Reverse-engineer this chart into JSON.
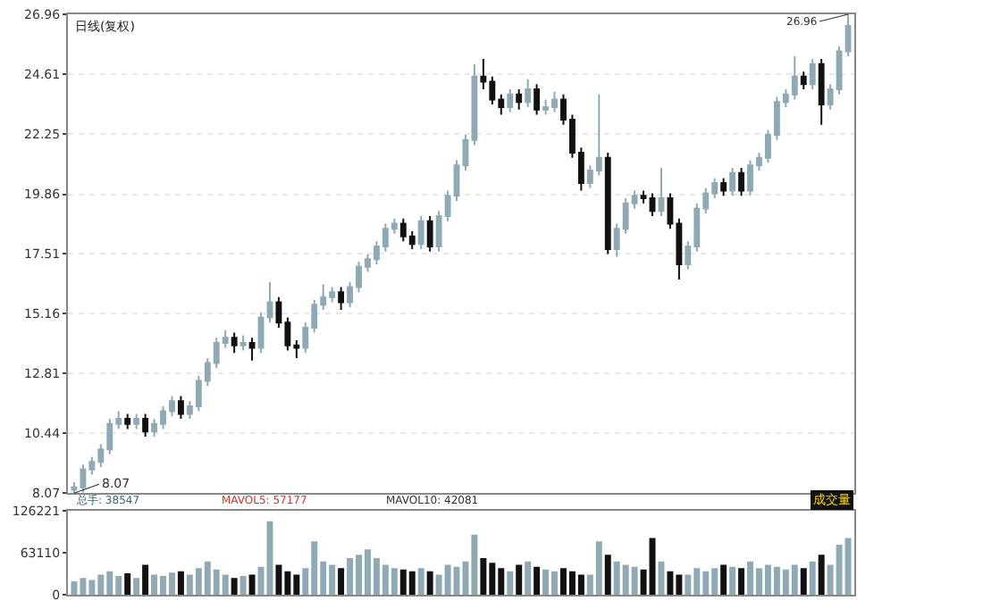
{
  "chart_data": [
    {
      "type": "candlestick",
      "title": "日线(复权)",
      "categories": [
        null,
        null,
        null,
        null,
        null,
        null,
        null,
        null,
        null,
        null,
        null,
        null,
        null,
        null,
        null,
        null,
        null,
        null,
        null,
        null,
        null,
        null,
        null,
        null,
        null,
        null,
        null,
        null,
        null,
        null,
        null,
        null,
        null,
        null,
        null,
        null,
        null,
        null,
        null,
        null,
        null,
        null,
        null,
        null,
        null,
        null,
        null,
        null,
        null,
        null,
        null,
        null,
        null,
        null,
        null,
        null,
        null,
        null,
        null,
        null,
        null,
        null,
        null,
        null,
        null,
        null,
        null,
        null,
        null,
        null,
        null,
        null,
        null,
        null,
        null,
        null,
        null,
        null,
        null,
        null,
        null,
        null,
        null,
        null,
        null,
        null,
        null,
        null
      ],
      "ohlc": [
        [
          8.2,
          8.5,
          8.07,
          8.3
        ],
        [
          8.3,
          9.2,
          8.1,
          9.0
        ],
        [
          9.0,
          9.5,
          8.8,
          9.3
        ],
        [
          9.3,
          10.0,
          9.1,
          9.8
        ],
        [
          9.8,
          11.0,
          9.6,
          10.8
        ],
        [
          10.8,
          11.3,
          10.6,
          11.0
        ],
        [
          11.0,
          11.2,
          10.6,
          10.8
        ],
        [
          10.8,
          11.2,
          10.6,
          11.0
        ],
        [
          11.0,
          11.2,
          10.3,
          10.5
        ],
        [
          10.5,
          11.0,
          10.3,
          10.8
        ],
        [
          10.8,
          11.5,
          10.6,
          11.3
        ],
        [
          11.3,
          11.9,
          11.1,
          11.7
        ],
        [
          11.7,
          11.9,
          11.0,
          11.2
        ],
        [
          11.2,
          11.7,
          11.0,
          11.5
        ],
        [
          11.5,
          12.7,
          11.3,
          12.5
        ],
        [
          12.5,
          13.4,
          12.3,
          13.2
        ],
        [
          13.2,
          14.2,
          13.0,
          14.0
        ],
        [
          14.0,
          14.5,
          13.8,
          14.2
        ],
        [
          14.2,
          14.4,
          13.6,
          13.9
        ],
        [
          13.9,
          14.3,
          13.7,
          14.0
        ],
        [
          14.0,
          14.2,
          13.3,
          13.8
        ],
        [
          13.8,
          15.2,
          13.6,
          15.0
        ],
        [
          15.0,
          16.4,
          14.8,
          15.6
        ],
        [
          15.6,
          15.8,
          14.6,
          14.8
        ],
        [
          14.8,
          15.0,
          13.7,
          13.9
        ],
        [
          13.9,
          14.1,
          13.4,
          13.8
        ],
        [
          13.8,
          14.8,
          13.6,
          14.6
        ],
        [
          14.6,
          15.7,
          14.4,
          15.5
        ],
        [
          15.5,
          16.3,
          15.3,
          15.8
        ],
        [
          15.8,
          16.2,
          15.6,
          16.0
        ],
        [
          16.0,
          16.2,
          15.3,
          15.6
        ],
        [
          15.6,
          16.4,
          15.4,
          16.2
        ],
        [
          16.2,
          17.2,
          16.0,
          17.0
        ],
        [
          17.0,
          17.5,
          16.8,
          17.3
        ],
        [
          17.3,
          18.0,
          17.1,
          17.8
        ],
        [
          17.8,
          18.7,
          17.6,
          18.5
        ],
        [
          18.5,
          18.9,
          18.3,
          18.7
        ],
        [
          18.7,
          18.9,
          18.0,
          18.2
        ],
        [
          18.2,
          18.4,
          17.7,
          17.9
        ],
        [
          17.9,
          19.0,
          17.7,
          18.8
        ],
        [
          18.8,
          19.0,
          17.6,
          17.8
        ],
        [
          17.8,
          19.2,
          17.6,
          19.0
        ],
        [
          19.0,
          20.0,
          18.8,
          19.8
        ],
        [
          19.8,
          21.2,
          19.6,
          21.0
        ],
        [
          21.0,
          22.2,
          20.8,
          22.0
        ],
        [
          22.0,
          25.0,
          21.8,
          24.5
        ],
        [
          24.5,
          25.2,
          24.0,
          24.3
        ],
        [
          24.3,
          24.5,
          23.4,
          23.6
        ],
        [
          23.6,
          23.8,
          23.0,
          23.3
        ],
        [
          23.3,
          24.0,
          23.1,
          23.8
        ],
        [
          23.8,
          24.0,
          23.2,
          23.5
        ],
        [
          23.5,
          24.4,
          23.3,
          24.0
        ],
        [
          24.0,
          24.2,
          23.0,
          23.2
        ],
        [
          23.2,
          23.6,
          23.0,
          23.3
        ],
        [
          23.3,
          23.9,
          23.1,
          23.6
        ],
        [
          23.6,
          23.8,
          22.6,
          22.8
        ],
        [
          22.8,
          23.0,
          21.3,
          21.5
        ],
        [
          21.5,
          21.7,
          20.0,
          20.3
        ],
        [
          20.3,
          21.0,
          20.1,
          20.8
        ],
        [
          20.8,
          23.8,
          20.6,
          21.3
        ],
        [
          21.3,
          21.5,
          17.5,
          17.7
        ],
        [
          17.7,
          18.7,
          17.4,
          18.5
        ],
        [
          18.5,
          19.7,
          18.3,
          19.5
        ],
        [
          19.5,
          20.0,
          19.3,
          19.8
        ],
        [
          19.8,
          20.0,
          19.5,
          19.7
        ],
        [
          19.7,
          19.9,
          19.0,
          19.2
        ],
        [
          19.2,
          20.9,
          19.0,
          19.7
        ],
        [
          19.7,
          19.9,
          18.5,
          18.7
        ],
        [
          18.7,
          18.9,
          16.5,
          17.1
        ],
        [
          17.1,
          18.0,
          16.9,
          17.8
        ],
        [
          17.8,
          19.5,
          17.6,
          19.3
        ],
        [
          19.3,
          20.1,
          19.1,
          19.9
        ],
        [
          19.9,
          20.5,
          19.7,
          20.3
        ],
        [
          20.3,
          20.5,
          19.8,
          20.0
        ],
        [
          20.0,
          20.9,
          19.8,
          20.7
        ],
        [
          20.7,
          20.9,
          19.8,
          20.0
        ],
        [
          20.0,
          21.2,
          19.8,
          21.0
        ],
        [
          21.0,
          21.5,
          20.8,
          21.3
        ],
        [
          21.3,
          22.4,
          21.1,
          22.2
        ],
        [
          22.2,
          23.7,
          22.0,
          23.5
        ],
        [
          23.5,
          24.0,
          23.3,
          23.8
        ],
        [
          23.8,
          25.3,
          23.6,
          24.5
        ],
        [
          24.5,
          24.7,
          24.0,
          24.2
        ],
        [
          24.2,
          25.2,
          24.0,
          25.0
        ],
        [
          25.0,
          25.2,
          22.6,
          23.4
        ],
        [
          23.4,
          24.2,
          23.2,
          24.0
        ],
        [
          24.0,
          25.7,
          23.8,
          25.5
        ],
        [
          25.5,
          26.96,
          25.3,
          26.5
        ]
      ],
      "colors": [
        "#8fa9b5",
        "#8fa9b5",
        "#8fa9b5",
        "#8fa9b5",
        "#8fa9b5",
        "#8fa9b5",
        "#111111",
        "#8fa9b5",
        "#111111",
        "#8fa9b5",
        "#8fa9b5",
        "#8fa9b5",
        "#111111",
        "#8fa9b5",
        "#8fa9b5",
        "#8fa9b5",
        "#8fa9b5",
        "#8fa9b5",
        "#111111",
        "#8fa9b5",
        "#111111",
        "#8fa9b5",
        "#8fa9b5",
        "#111111",
        "#111111",
        "#111111",
        "#8fa9b5",
        "#8fa9b5",
        "#8fa9b5",
        "#8fa9b5",
        "#111111",
        "#8fa9b5",
        "#8fa9b5",
        "#8fa9b5",
        "#8fa9b5",
        "#8fa9b5",
        "#8fa9b5",
        "#111111",
        "#111111",
        "#8fa9b5",
        "#111111",
        "#8fa9b5",
        "#8fa9b5",
        "#8fa9b5",
        "#8fa9b5",
        "#8fa9b5",
        "#111111",
        "#111111",
        "#111111",
        "#8fa9b5",
        "#111111",
        "#8fa9b5",
        "#111111",
        "#8fa9b5",
        "#8fa9b5",
        "#111111",
        "#111111",
        "#111111",
        "#8fa9b5",
        "#8fa9b5",
        "#111111",
        "#8fa9b5",
        "#8fa9b5",
        "#8fa9b5",
        "#111111",
        "#111111",
        "#8fa9b5",
        "#111111",
        "#111111",
        "#8fa9b5",
        "#8fa9b5",
        "#8fa9b5",
        "#8fa9b5",
        "#111111",
        "#8fa9b5",
        "#111111",
        "#8fa9b5",
        "#8fa9b5",
        "#8fa9b5",
        "#8fa9b5",
        "#8fa9b5",
        "#8fa9b5",
        "#111111",
        "#8fa9b5",
        "#111111",
        "#8fa9b5",
        "#8fa9b5",
        "#8fa9b5"
      ],
      "ylim": [
        8.07,
        26.96
      ],
      "yticks": [
        8.07,
        10.44,
        12.81,
        15.16,
        17.51,
        19.86,
        22.25,
        24.61,
        26.96
      ],
      "grid": "y",
      "annotations": [
        "8.07",
        "26.96"
      ]
    },
    {
      "type": "bar",
      "categories": [
        null,
        null,
        null,
        null,
        null,
        null,
        null,
        null,
        null,
        null,
        null,
        null,
        null,
        null,
        null,
        null,
        null,
        null,
        null,
        null,
        null,
        null,
        null,
        null,
        null,
        null,
        null,
        null,
        null,
        null,
        null,
        null,
        null,
        null,
        null,
        null,
        null,
        null,
        null,
        null,
        null,
        null,
        null,
        null,
        null,
        null,
        null,
        null,
        null,
        null,
        null,
        null,
        null,
        null,
        null,
        null,
        null,
        null,
        null,
        null,
        null,
        null,
        null,
        null,
        null,
        null,
        null,
        null,
        null,
        null,
        null,
        null,
        null,
        null,
        null,
        null,
        null,
        null,
        null,
        null,
        null,
        null,
        null,
        null,
        null,
        null,
        null,
        null
      ],
      "values": [
        20000,
        25000,
        22000,
        30000,
        35000,
        28000,
        32000,
        25000,
        45000,
        30000,
        28000,
        33000,
        35000,
        30000,
        40000,
        50000,
        38000,
        30000,
        25000,
        28000,
        30000,
        42000,
        110000,
        45000,
        35000,
        30000,
        40000,
        80000,
        50000,
        45000,
        40000,
        55000,
        60000,
        68000,
        55000,
        45000,
        40000,
        38000,
        35000,
        40000,
        35000,
        30000,
        45000,
        42000,
        50000,
        90000,
        55000,
        48000,
        40000,
        35000,
        45000,
        50000,
        42000,
        38000,
        35000,
        40000,
        35000,
        30000,
        30000,
        80000,
        60000,
        50000,
        45000,
        42000,
        38000,
        85000,
        50000,
        35000,
        30000,
        30000,
        40000,
        35000,
        40000,
        45000,
        42000,
        40000,
        50000,
        40000,
        45000,
        42000,
        38000,
        45000,
        40000,
        50000,
        60000,
        45000,
        75000,
        85000
      ],
      "colors": [
        "#8fa9b5",
        "#8fa9b5",
        "#8fa9b5",
        "#8fa9b5",
        "#8fa9b5",
        "#8fa9b5",
        "#111111",
        "#8fa9b5",
        "#111111",
        "#8fa9b5",
        "#8fa9b5",
        "#8fa9b5",
        "#111111",
        "#8fa9b5",
        "#8fa9b5",
        "#8fa9b5",
        "#8fa9b5",
        "#8fa9b5",
        "#111111",
        "#8fa9b5",
        "#111111",
        "#8fa9b5",
        "#8fa9b5",
        "#111111",
        "#111111",
        "#111111",
        "#8fa9b5",
        "#8fa9b5",
        "#8fa9b5",
        "#8fa9b5",
        "#111111",
        "#8fa9b5",
        "#8fa9b5",
        "#8fa9b5",
        "#8fa9b5",
        "#8fa9b5",
        "#8fa9b5",
        "#111111",
        "#111111",
        "#8fa9b5",
        "#111111",
        "#8fa9b5",
        "#8fa9b5",
        "#8fa9b5",
        "#8fa9b5",
        "#8fa9b5",
        "#111111",
        "#111111",
        "#111111",
        "#8fa9b5",
        "#111111",
        "#8fa9b5",
        "#111111",
        "#8fa9b5",
        "#8fa9b5",
        "#111111",
        "#111111",
        "#111111",
        "#8fa9b5",
        "#8fa9b5",
        "#111111",
        "#8fa9b5",
        "#8fa9b5",
        "#8fa9b5",
        "#111111",
        "#111111",
        "#8fa9b5",
        "#111111",
        "#111111",
        "#8fa9b5",
        "#8fa9b5",
        "#8fa9b5",
        "#8fa9b5",
        "#111111",
        "#8fa9b5",
        "#111111",
        "#8fa9b5",
        "#8fa9b5",
        "#8fa9b5",
        "#8fa9b5",
        "#8fa9b5",
        "#8fa9b5",
        "#111111",
        "#8fa9b5",
        "#111111",
        "#8fa9b5",
        "#8fa9b5",
        "#8fa9b5"
      ],
      "ylim": [
        0,
        126221
      ],
      "yticks": [
        0,
        63110,
        126221
      ],
      "annotations": [
        "总手: 38547",
        "MAVOL5: 57177",
        "MAVOL10: 42081",
        "成交量"
      ]
    }
  ]
}
